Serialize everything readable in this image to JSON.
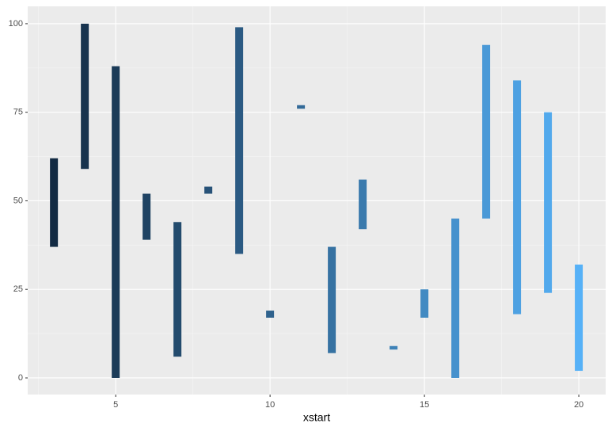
{
  "chart_data": {
    "type": "range_bar",
    "x": [
      3,
      4,
      5,
      6,
      7,
      8,
      9,
      10,
      11,
      12,
      13,
      14,
      15,
      16,
      17,
      18,
      19,
      20
    ],
    "ymin": [
      37,
      59,
      0,
      39,
      6,
      52,
      35,
      17,
      76,
      7,
      42,
      8,
      17,
      0,
      45,
      18,
      24,
      2
    ],
    "ymax": [
      62,
      100,
      88,
      52,
      44,
      54,
      99,
      19,
      77,
      37,
      56,
      9,
      25,
      45,
      94,
      84,
      75,
      32
    ],
    "color_low": "#132B43",
    "color_high": "#56B1F7",
    "xlabel": "xstart",
    "xlim": [
      2.15,
      20.87
    ],
    "xticks": [
      5,
      10,
      15,
      20
    ],
    "ylim": [
      -4.7,
      104.9
    ],
    "yticks": [
      0,
      25,
      50,
      75,
      100
    ],
    "grid": true
  }
}
